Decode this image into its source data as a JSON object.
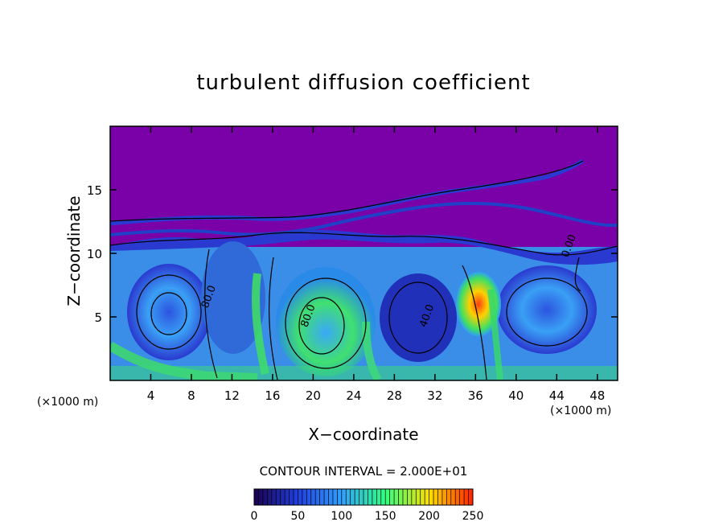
{
  "chart_data": {
    "type": "heatmap",
    "title": "turbulent diffusion coefficient",
    "xlabel": "X−coordinate",
    "ylabel": "Z−coordinate",
    "x_unit_label": "(×1000 m)",
    "z_unit_label": "(×1000 m)",
    "xlim": [
      0,
      50
    ],
    "ylim": [
      0,
      20
    ],
    "x_ticks": [
      4,
      8,
      12,
      16,
      20,
      24,
      28,
      32,
      36,
      40,
      44,
      48
    ],
    "y_ticks": [
      5,
      10,
      15
    ],
    "contour_interval_text": "CONTOUR INTERVAL = 2.000E+01",
    "contour_labels": [
      {
        "text": "80.0",
        "x": 10.0,
        "z": 6.5
      },
      {
        "text": "80.0",
        "x": 19.8,
        "z": 5.0
      },
      {
        "text": "40.0",
        "x": 31.5,
        "z": 5.0
      },
      {
        "text": "0.00",
        "x": 45.5,
        "z": 10.5
      }
    ],
    "colorbar": {
      "ticks": [
        0,
        50,
        100,
        150,
        200,
        250
      ],
      "range": [
        0,
        250
      ],
      "colors": [
        "#1a0050",
        "#2040e0",
        "#30a0ff",
        "#30ff80",
        "#ffe000",
        "#ff2000"
      ]
    },
    "colors": {
      "upper_region": "#7a00a8",
      "low_value": "#2a3ad0",
      "mid_value": "#3a9cf0",
      "high_value": "#40e060",
      "peak_value": "#ff5010"
    }
  }
}
